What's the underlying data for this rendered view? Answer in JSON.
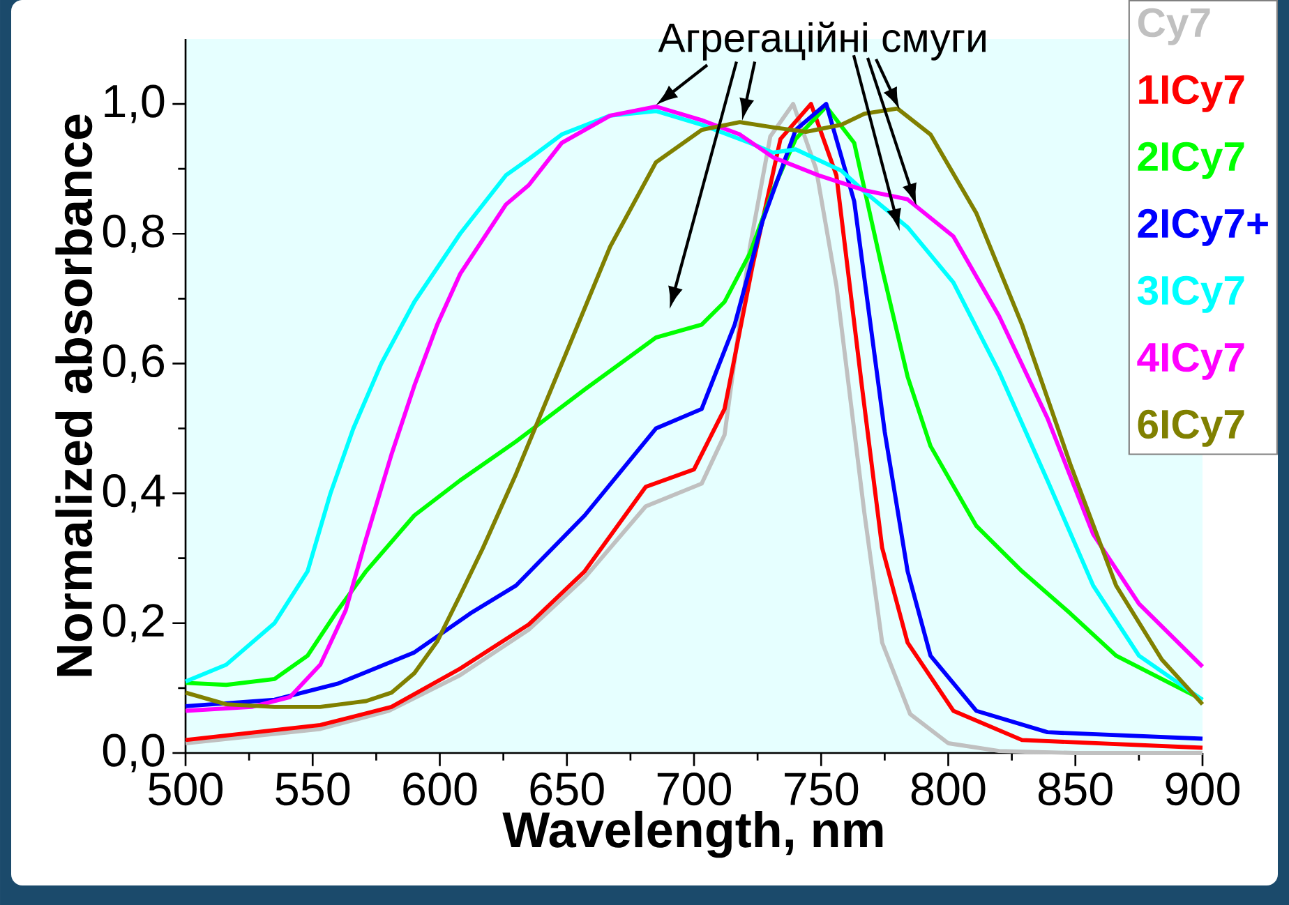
{
  "chart_data": {
    "type": "line",
    "xlabel": "Wavelength, nm",
    "ylabel": "Normalized absorbance",
    "annotations": [
      {
        "text": "Агрегаційні смуги",
        "x": 685,
        "y": 0.998
      }
    ],
    "xlim": [
      500,
      900
    ],
    "ylim": [
      0,
      1.1
    ],
    "xticks": [
      500,
      550,
      600,
      650,
      700,
      750,
      800,
      850,
      900
    ],
    "yticks": [
      {
        "value": 0,
        "label": "0,0"
      },
      {
        "value": 0.2,
        "label": "0,2"
      },
      {
        "value": 0.4,
        "label": "0,4"
      },
      {
        "value": 0.6,
        "label": "0,6"
      },
      {
        "value": 0.8,
        "label": "0,8"
      },
      {
        "value": 1.0,
        "label": "1,0"
      }
    ],
    "legend": "top right",
    "marker": "none",
    "line_style": "solid",
    "series": [
      {
        "name": "Cy7",
        "color": "#c0c0c0",
        "x": [
          500,
          553,
          580,
          608,
          635,
          657,
          681,
          703,
          712,
          722,
          730,
          739,
          748,
          756,
          767,
          774,
          785,
          800,
          820,
          850,
          900
        ],
        "values": [
          0.015,
          0.037,
          0.065,
          0.12,
          0.19,
          0.27,
          0.38,
          0.415,
          0.49,
          0.78,
          0.95,
          1.0,
          0.9,
          0.72,
          0.37,
          0.17,
          0.06,
          0.015,
          0.003,
          0.0,
          0.0
        ]
      },
      {
        "name": "1ICy7",
        "color": "#ff0000",
        "x": [
          500,
          553,
          581,
          608,
          635,
          657,
          681,
          700,
          712,
          723,
          734,
          746,
          756,
          766,
          774,
          784,
          802,
          829,
          900
        ],
        "values": [
          0.02,
          0.043,
          0.071,
          0.13,
          0.198,
          0.28,
          0.41,
          0.437,
          0.53,
          0.75,
          0.946,
          1.0,
          0.89,
          0.566,
          0.316,
          0.17,
          0.065,
          0.02,
          0.008
        ]
      },
      {
        "name": "2ICy7",
        "color": "#00ff00",
        "x": [
          500,
          516,
          535,
          548,
          559,
          571,
          590,
          608,
          630,
          657,
          685,
          703,
          712,
          722,
          731,
          740,
          752,
          763,
          774,
          784,
          793,
          811,
          829,
          848,
          866,
          900
        ],
        "values": [
          0.108,
          0.105,
          0.114,
          0.15,
          0.215,
          0.28,
          0.366,
          0.42,
          0.48,
          0.56,
          0.64,
          0.66,
          0.695,
          0.77,
          0.867,
          0.946,
          0.996,
          0.94,
          0.746,
          0.58,
          0.473,
          0.35,
          0.28,
          0.215,
          0.15,
          0.082
        ]
      },
      {
        "name": "2ICy7+",
        "color": "#0000ff",
        "x": [
          500,
          535,
          560,
          590,
          612,
          630,
          657,
          685,
          703,
          716,
          727,
          740,
          752,
          763,
          775,
          784,
          793,
          811,
          839,
          900
        ],
        "values": [
          0.072,
          0.082,
          0.107,
          0.155,
          0.215,
          0.258,
          0.366,
          0.5,
          0.53,
          0.66,
          0.82,
          0.96,
          1.0,
          0.85,
          0.495,
          0.28,
          0.15,
          0.065,
          0.032,
          0.022
        ]
      },
      {
        "name": "3ICy7",
        "color": "#00ffff",
        "x": [
          500,
          516,
          535,
          548,
          557,
          566,
          577,
          590,
          608,
          626,
          635,
          648,
          667,
          685,
          703,
          722,
          731,
          740,
          758,
          767,
          784,
          802,
          820,
          839,
          857,
          875,
          900
        ],
        "values": [
          0.11,
          0.136,
          0.2,
          0.28,
          0.4,
          0.5,
          0.6,
          0.695,
          0.8,
          0.89,
          0.915,
          0.953,
          0.982,
          0.989,
          0.968,
          0.94,
          0.925,
          0.93,
          0.897,
          0.865,
          0.81,
          0.725,
          0.587,
          0.42,
          0.258,
          0.15,
          0.082
        ]
      },
      {
        "name": "4ICy7",
        "color": "#ff00ff",
        "x": [
          500,
          526,
          541,
          553,
          563,
          571,
          581,
          590,
          599,
          608,
          626,
          635,
          648,
          667,
          685,
          703,
          718,
          731,
          749,
          767,
          784,
          802,
          820,
          839,
          857,
          875,
          900
        ],
        "values": [
          0.065,
          0.071,
          0.086,
          0.136,
          0.22,
          0.33,
          0.46,
          0.566,
          0.66,
          0.738,
          0.845,
          0.875,
          0.94,
          0.982,
          0.996,
          0.975,
          0.953,
          0.918,
          0.89,
          0.867,
          0.853,
          0.796,
          0.673,
          0.516,
          0.337,
          0.23,
          0.133
        ]
      },
      {
        "name": "6ICy7",
        "color": "#808000",
        "x": [
          500,
          516,
          535,
          553,
          571,
          581,
          590,
          599,
          608,
          617,
          630,
          648,
          667,
          685,
          703,
          718,
          731,
          744,
          758,
          767,
          780,
          793,
          811,
          829,
          848,
          866,
          884,
          900
        ],
        "values": [
          0.093,
          0.075,
          0.071,
          0.071,
          0.08,
          0.093,
          0.123,
          0.172,
          0.243,
          0.316,
          0.43,
          0.6,
          0.78,
          0.91,
          0.96,
          0.972,
          0.964,
          0.957,
          0.968,
          0.985,
          0.993,
          0.953,
          0.832,
          0.66,
          0.445,
          0.258,
          0.144,
          0.075
        ]
      }
    ]
  }
}
